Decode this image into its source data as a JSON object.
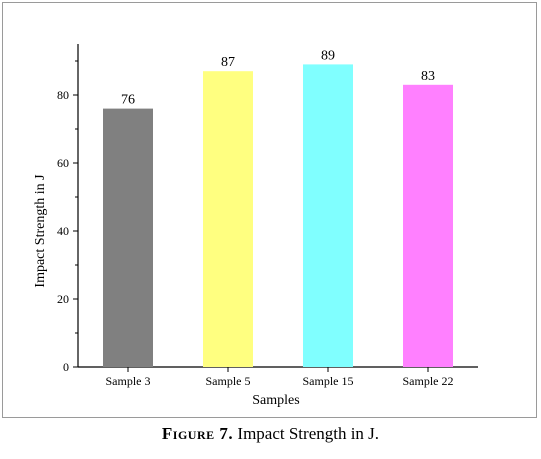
{
  "chart_data": {
    "type": "bar",
    "categories": [
      "Sample 3",
      "Sample 5",
      "Sample 15",
      "Sample 22"
    ],
    "values": [
      76,
      87,
      89,
      83
    ],
    "value_labels": [
      "76",
      "87",
      "89",
      "83"
    ],
    "colors": [
      "#808080",
      "#ffff80",
      "#80ffff",
      "#ff80ff"
    ],
    "xlabel": "Samples",
    "ylabel": "Impact Strength in J",
    "ylim": [
      0,
      95
    ],
    "yticks": [
      0,
      20,
      40,
      60,
      80
    ],
    "grid": false
  },
  "caption": {
    "figure_word": "Figure 7.",
    "text": "Impact Strength in J."
  }
}
